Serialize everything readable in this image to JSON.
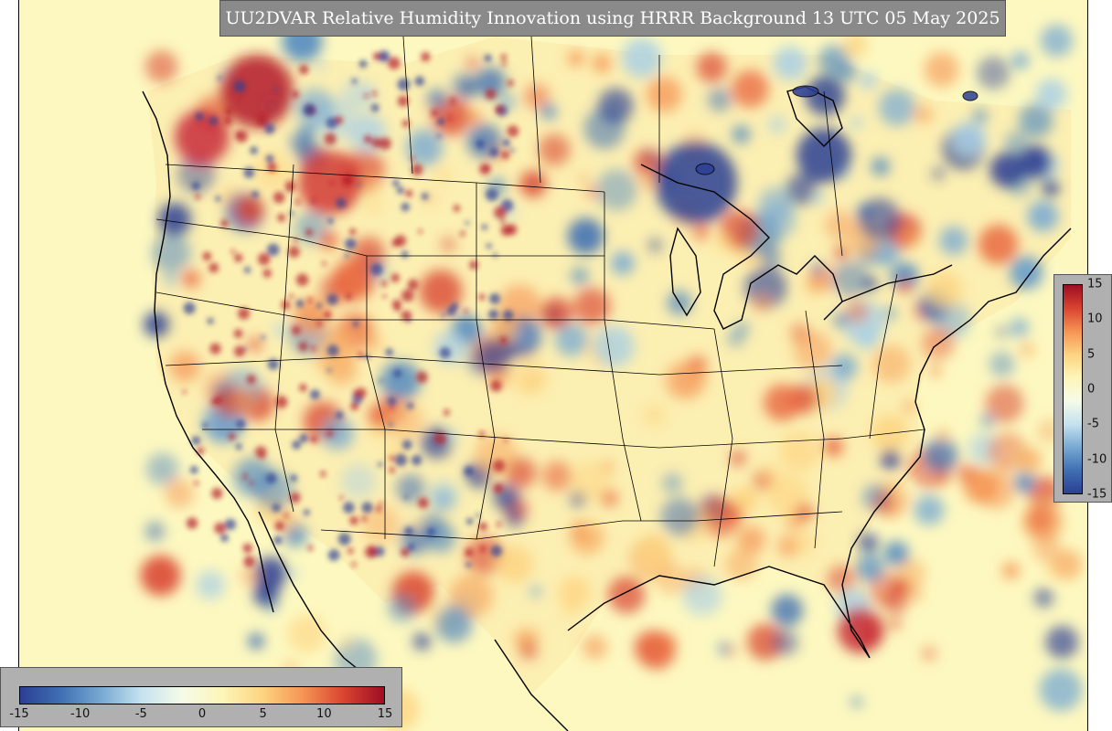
{
  "title": "UU2DVAR Relative Humidity Innovation using HRRR Background 13 UTC 05 May 2025",
  "colorbar": {
    "vmin": -15,
    "vmax": 15,
    "vertical_ticks": [
      "15",
      "10",
      "5",
      "0",
      "-5",
      "-10",
      "-15"
    ],
    "horizontal_ticks": [
      "-15",
      "-10",
      "-5",
      "0",
      "5",
      "10",
      "15"
    ],
    "colormap": [
      "#2c3f93",
      "#3f6fb3",
      "#77a9d2",
      "#c5e2ef",
      "#f5fbe8",
      "#fdf6b8",
      "#fdd380",
      "#f59454",
      "#d94430",
      "#9e0d24"
    ]
  },
  "map": {
    "background_color": "#fdf8c0",
    "field": "Relative Humidity Innovation",
    "region": "Continental United States"
  }
}
